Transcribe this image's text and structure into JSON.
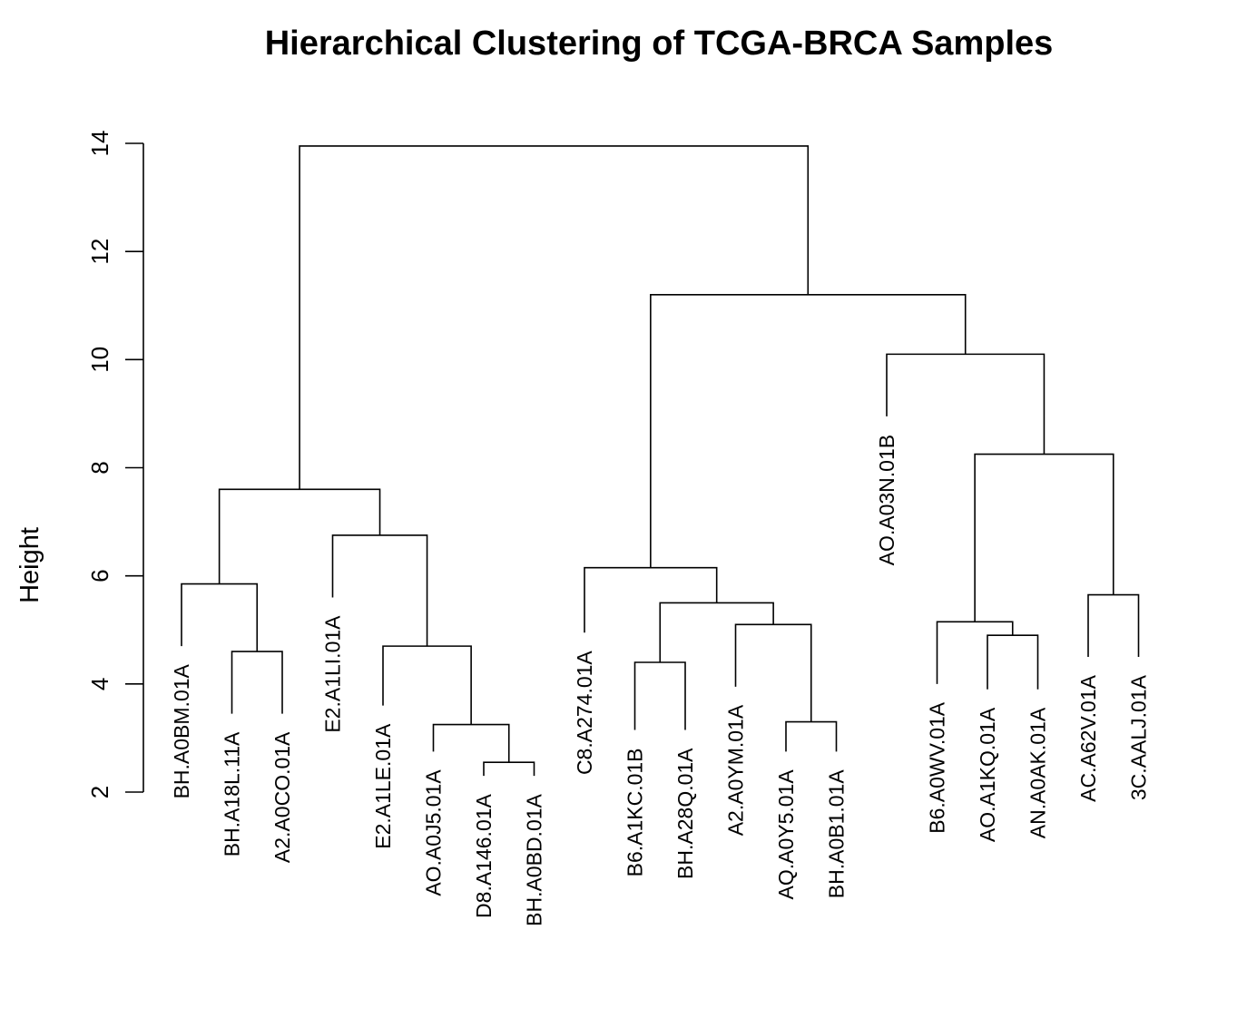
{
  "chart_data": {
    "type": "dendrogram",
    "title": "Hierarchical Clustering of TCGA-BRCA Samples",
    "xlabel": "",
    "ylabel": "Height",
    "ylim": [
      2,
      14
    ],
    "yticks": [
      "2",
      "4",
      "6",
      "8",
      "10",
      "12",
      "14"
    ],
    "leaves": [
      "BH.A0BM.01A",
      "BH.A18L.11A",
      "A2.A0CO.01A",
      "E2.A1LI.01A",
      "E2.A1LE.01A",
      "AO.A0J5.01A",
      "D8.A146.01A",
      "BH.A0BD.01A",
      "C8.A274.01A",
      "B6.A1KC.01B",
      "BH.A28Q.01A",
      "A2.A0YM.01A",
      "AQ.A0Y5.01A",
      "BH.A0B1.01A",
      "AO.A03N.01B",
      "B6.A0WV.01A",
      "AO.A1KQ.01A",
      "AN.A0AK.01A",
      "AC.A62V.01A",
      "3C.AALJ.01A"
    ],
    "leaf_heights": [
      4.7,
      3.45,
      3.45,
      5.6,
      3.6,
      2.75,
      2.3,
      2.3,
      4.95,
      3.15,
      3.15,
      3.95,
      2.75,
      2.75,
      8.95,
      4.0,
      3.9,
      3.9,
      4.5,
      4.5
    ],
    "merges": [
      {
        "children": [
          "D8.A146.01A",
          "BH.A0BD.01A"
        ],
        "height": 2.55
      },
      {
        "children": [
          "AO.A0J5.01A",
          "m1"
        ],
        "height": 3.25
      },
      {
        "children": [
          "AQ.A0Y5.01A",
          "BH.A0B1.01A"
        ],
        "height": 3.3
      },
      {
        "children": [
          "B6.A1KC.01B",
          "BH.A28Q.01A"
        ],
        "height": 4.4
      },
      {
        "children": [
          "BH.A18L.11A",
          "A2.A0CO.01A"
        ],
        "height": 4.6
      },
      {
        "children": [
          "E2.A1LE.01A",
          "m2"
        ],
        "height": 4.7
      },
      {
        "children": [
          "AO.A1KQ.01A",
          "AN.A0AK.01A"
        ],
        "height": 4.9
      },
      {
        "children": [
          "A2.A0YM.01A",
          "m3"
        ],
        "height": 5.1
      },
      {
        "children": [
          "B6.A0WV.01A",
          "m7"
        ],
        "height": 5.15
      },
      {
        "children": [
          "m4",
          "m8"
        ],
        "height": 5.5
      },
      {
        "children": [
          "AC.A62V.01A",
          "3C.AALJ.01A"
        ],
        "height": 5.65
      },
      {
        "children": [
          "BH.A0BM.01A",
          "m5"
        ],
        "height": 5.85
      },
      {
        "children": [
          "C8.A274.01A",
          "m10"
        ],
        "height": 6.15
      },
      {
        "children": [
          "E2.A1LI.01A",
          "m6"
        ],
        "height": 6.75
      },
      {
        "children": [
          "m12",
          "m14"
        ],
        "height": 7.6
      },
      {
        "children": [
          "m9",
          "m11"
        ],
        "height": 8.25
      },
      {
        "children": [
          "AO.A03N.01B",
          "m16"
        ],
        "height": 10.1
      },
      {
        "children": [
          "m13",
          "m17"
        ],
        "height": 11.2
      },
      {
        "children": [
          "m15",
          "m18"
        ],
        "height": 13.95
      }
    ]
  }
}
